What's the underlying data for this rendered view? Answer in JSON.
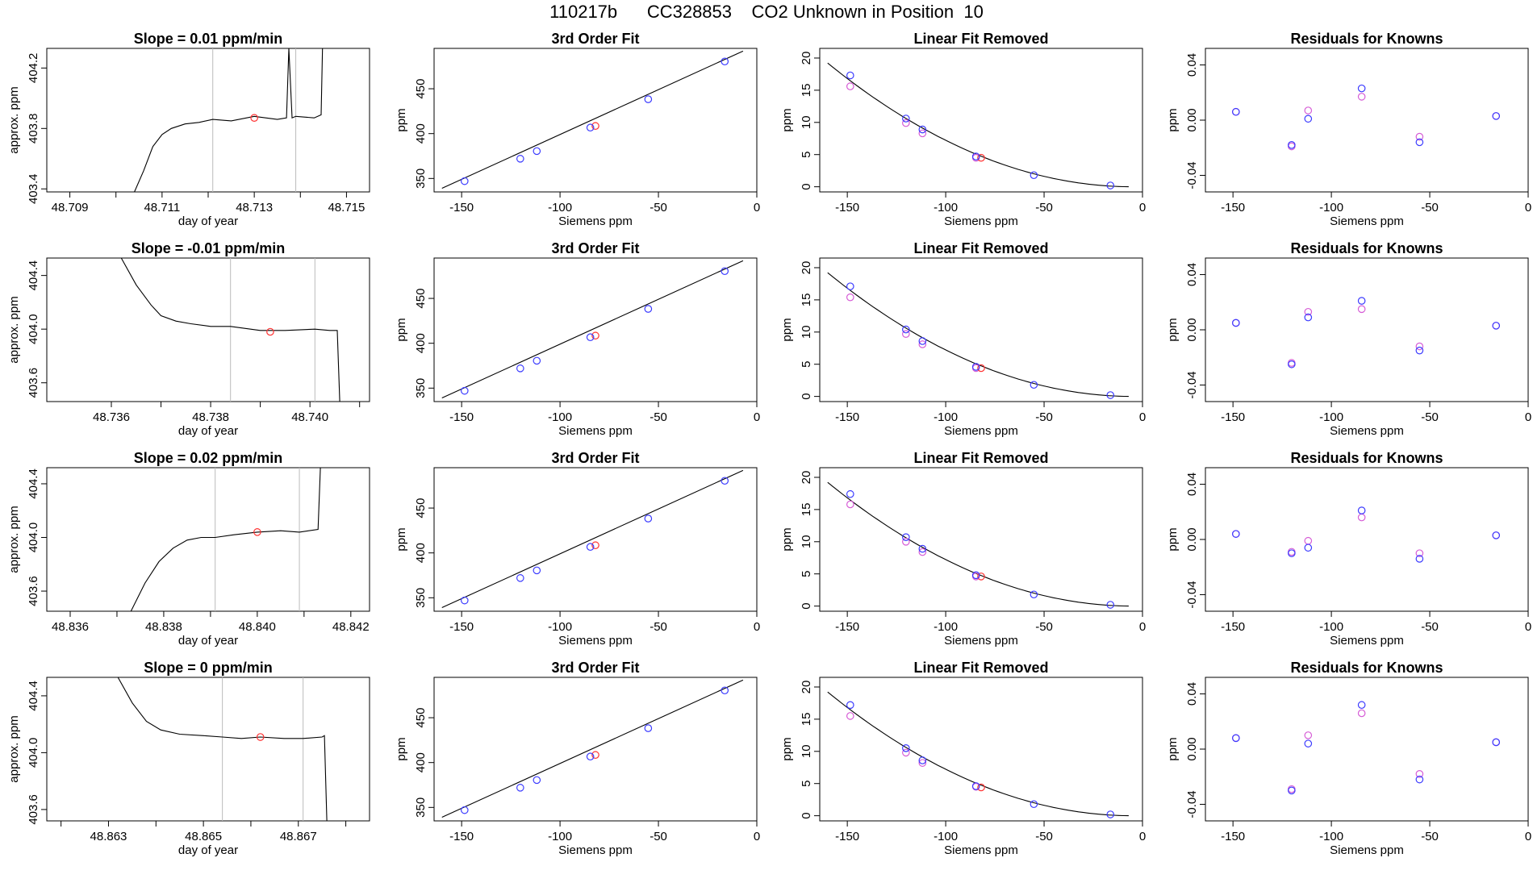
{
  "figure_title": "110217b      CC328853    CO2 Unknown in Position  10",
  "colors": {
    "known": "#3b3bff",
    "fit": "#d65cd6",
    "unknown": "#ff3030",
    "line": "#000000",
    "guide": "#bbbbbb"
  },
  "chart_data": [
    {
      "type": "line",
      "row": 1,
      "col": 1,
      "title": "Slope =  0.01  ppm/min",
      "xlabel": "day of year",
      "ylabel": "approx. ppm",
      "xlim": [
        48.7085,
        48.7155
      ],
      "ylim": [
        403.38,
        404.33
      ],
      "xticks": [
        48.709,
        48.711,
        48.713,
        48.715
      ],
      "xtick_labels": [
        "48.709",
        "48.711",
        "48.713",
        "48.715"
      ],
      "xminor": [
        48.71,
        48.712,
        48.714
      ],
      "yticks": [
        403.4,
        403.8,
        404.2
      ],
      "ytick_labels": [
        "403.4",
        "403.8",
        "404.2"
      ],
      "guides": [
        48.7121,
        48.7139
      ],
      "x": [
        48.7104,
        48.7106,
        48.7108,
        48.711,
        48.7112,
        48.7115,
        48.7118,
        48.7121,
        48.7125,
        48.713,
        48.7135,
        48.7137,
        48.71375,
        48.71382,
        48.7139,
        48.7143,
        48.71445,
        48.71448
      ],
      "y": [
        403.38,
        403.52,
        403.68,
        403.76,
        403.8,
        403.83,
        403.84,
        403.86,
        403.85,
        403.88,
        403.86,
        403.87,
        404.33,
        403.87,
        403.88,
        403.87,
        403.89,
        404.33
      ],
      "marker": {
        "x": 48.713,
        "y": 403.87
      }
    },
    {
      "type": "scatter",
      "row": 1,
      "col": 2,
      "title": "3rd Order Fit",
      "xlabel": "Siemens ppm",
      "ylabel": "ppm",
      "xlim": [
        -164,
        0
      ],
      "ylim": [
        335,
        495
      ],
      "xticks": [
        -150,
        -100,
        -50,
        0
      ],
      "xtick_labels": [
        "-150",
        "-100",
        "-50",
        "0"
      ],
      "yticks": [
        350,
        400,
        450
      ],
      "ytick_labels": [
        "350",
        "400",
        "450"
      ],
      "curve": {
        "x": [
          -160,
          -7
        ],
        "y": [
          339,
          492
        ]
      },
      "knowns": {
        "x": [
          -148.5,
          -120.2,
          -111.8,
          -84.6,
          -55.2,
          -16.3
        ],
        "y": [
          347.0,
          372.0,
          380.5,
          406.7,
          438.3,
          480.4
        ]
      },
      "unknown": {
        "x": [
          -82.0
        ],
        "y": [
          408.5
        ]
      }
    },
    {
      "type": "scatter",
      "row": 1,
      "col": 3,
      "title": "Linear Fit Removed",
      "xlabel": "Siemens ppm",
      "ylabel": "ppm",
      "xlim": [
        -164,
        0
      ],
      "ylim": [
        -0.8,
        21.5
      ],
      "xticks": [
        -150,
        -100,
        -50,
        0
      ],
      "xtick_labels": [
        "-150",
        "-100",
        "-50",
        "0"
      ],
      "yticks": [
        0,
        5,
        10,
        15,
        20
      ],
      "ytick_labels": [
        "0",
        "5",
        "10",
        "15",
        "20"
      ],
      "curve_fn": {
        "x0": -5,
        "k": 0.0008
      },
      "knowns": {
        "x": [
          -148.5,
          -120.2,
          -111.8,
          -84.6,
          -55.2,
          -16.3
        ],
        "y": [
          17.3,
          10.6,
          8.9,
          4.7,
          1.8,
          0.2
        ]
      },
      "fit": {
        "x": [
          -148.5,
          -120.2,
          -111.8,
          -84.6
        ],
        "y": [
          15.6,
          9.9,
          8.3,
          4.5
        ]
      },
      "unknown": {
        "x": [
          -82.0
        ],
        "y": [
          4.5
        ]
      }
    },
    {
      "type": "scatter",
      "row": 1,
      "col": 4,
      "title": "Residuals for Knowns",
      "xlabel": "Siemens ppm",
      "ylabel": "ppm",
      "xlim": [
        -164,
        0
      ],
      "ylim": [
        -0.052,
        0.052
      ],
      "xticks": [
        -150,
        -100,
        -50,
        0
      ],
      "xtick_labels": [
        "-150",
        "-100",
        "-50",
        "0"
      ],
      "yticks": [
        -0.04,
        0.0,
        0.04
      ],
      "ytick_labels": [
        "-0.04",
        "0.00",
        "0.04"
      ],
      "knowns": {
        "x": [
          -148.5,
          -120.2,
          -111.8,
          -84.6,
          -55.2,
          -16.3
        ],
        "y": [
          0.006,
          -0.018,
          0.001,
          0.023,
          -0.016,
          0.003
        ]
      },
      "fit": {
        "x": [
          -148.5,
          -120.2,
          -111.8,
          -84.6,
          -55.2,
          -16.3
        ],
        "y": [
          0.006,
          -0.019,
          0.007,
          0.017,
          -0.012,
          0.003
        ]
      }
    },
    {
      "type": "line",
      "row": 2,
      "col": 1,
      "title": "Slope =  -0.01  ppm/min",
      "xlabel": "day of year",
      "ylabel": "approx. ppm",
      "xlim": [
        48.7347,
        48.7412
      ],
      "ylim": [
        403.46,
        404.53
      ],
      "xticks": [
        48.736,
        48.738,
        48.74
      ],
      "xtick_labels": [
        "48.736",
        "48.738",
        "48.740"
      ],
      "xminor": [
        48.737,
        48.739,
        48.741
      ],
      "yticks": [
        403.6,
        404.0,
        404.4
      ],
      "ytick_labels": [
        "403.6",
        "404.0",
        "404.4"
      ],
      "guides": [
        48.7384,
        48.7401
      ],
      "x": [
        48.7362,
        48.7365,
        48.7368,
        48.737,
        48.7373,
        48.7376,
        48.738,
        48.7384,
        48.739,
        48.7395,
        48.7401,
        48.7404,
        48.74055,
        48.7406
      ],
      "y": [
        404.53,
        404.33,
        404.18,
        404.1,
        404.06,
        404.04,
        404.02,
        404.02,
        403.99,
        403.99,
        404.0,
        403.99,
        403.99,
        403.46
      ],
      "marker": {
        "x": 48.7392,
        "y": 403.98
      }
    },
    {
      "type": "scatter",
      "row": 2,
      "col": 2,
      "title": "3rd Order Fit",
      "xlabel": "Siemens ppm",
      "ylabel": "ppm",
      "xlim": [
        -164,
        0
      ],
      "ylim": [
        335,
        495
      ],
      "xticks": [
        -150,
        -100,
        -50,
        0
      ],
      "xtick_labels": [
        "-150",
        "-100",
        "-50",
        "0"
      ],
      "yticks": [
        350,
        400,
        450
      ],
      "ytick_labels": [
        "350",
        "400",
        "450"
      ],
      "curve": {
        "x": [
          -160,
          -7
        ],
        "y": [
          339,
          492
        ]
      },
      "knowns": {
        "x": [
          -148.5,
          -120.2,
          -111.8,
          -84.6,
          -55.2,
          -16.3
        ],
        "y": [
          347.0,
          372.0,
          380.5,
          406.7,
          438.3,
          480.4
        ]
      },
      "unknown": {
        "x": [
          -82.0
        ],
        "y": [
          408.5
        ]
      }
    },
    {
      "type": "scatter",
      "row": 2,
      "col": 3,
      "title": "Linear Fit Removed",
      "xlabel": "Siemens ppm",
      "ylabel": "ppm",
      "xlim": [
        -164,
        0
      ],
      "ylim": [
        -0.8,
        21.5
      ],
      "xticks": [
        -150,
        -100,
        -50,
        0
      ],
      "xtick_labels": [
        "-150",
        "-100",
        "-50",
        "0"
      ],
      "yticks": [
        0,
        5,
        10,
        15,
        20
      ],
      "ytick_labels": [
        "0",
        "5",
        "10",
        "15",
        "20"
      ],
      "curve_fn": {
        "x0": -5,
        "k": 0.0008
      },
      "knowns": {
        "x": [
          -148.5,
          -120.2,
          -111.8,
          -84.6,
          -55.2,
          -16.3
        ],
        "y": [
          17.1,
          10.4,
          8.6,
          4.6,
          1.8,
          0.2
        ]
      },
      "fit": {
        "x": [
          -148.5,
          -120.2,
          -111.8,
          -84.6
        ],
        "y": [
          15.4,
          9.7,
          8.1,
          4.4
        ]
      },
      "unknown": {
        "x": [
          -82.0
        ],
        "y": [
          4.4
        ]
      }
    },
    {
      "type": "scatter",
      "row": 2,
      "col": 4,
      "title": "Residuals for Knowns",
      "xlabel": "Siemens ppm",
      "ylabel": "ppm",
      "xlim": [
        -164,
        0
      ],
      "ylim": [
        -0.052,
        0.052
      ],
      "xticks": [
        -150,
        -100,
        -50,
        0
      ],
      "xtick_labels": [
        "-150",
        "-100",
        "-50",
        "0"
      ],
      "yticks": [
        -0.04,
        0.0,
        0.04
      ],
      "ytick_labels": [
        "-0.04",
        "0.00",
        "0.04"
      ],
      "knowns": {
        "x": [
          -148.5,
          -120.2,
          -111.8,
          -84.6,
          -55.2,
          -16.3
        ],
        "y": [
          0.005,
          -0.025,
          0.009,
          0.021,
          -0.015,
          0.003
        ]
      },
      "fit": {
        "x": [
          -148.5,
          -120.2,
          -111.8,
          -84.6,
          -55.2,
          -16.3
        ],
        "y": [
          0.005,
          -0.024,
          0.013,
          0.015,
          -0.012,
          0.003
        ]
      }
    },
    {
      "type": "line",
      "row": 3,
      "col": 1,
      "title": "Slope =  0.02  ppm/min",
      "xlabel": "day of year",
      "ylabel": "approx. ppm",
      "xlim": [
        48.8355,
        48.8424
      ],
      "ylim": [
        403.45,
        404.52
      ],
      "xticks": [
        48.836,
        48.838,
        48.84,
        48.842
      ],
      "xtick_labels": [
        "48.836",
        "48.838",
        "48.840",
        "48.842"
      ],
      "xminor": [
        48.837,
        48.839,
        48.841
      ],
      "yticks": [
        403.6,
        404.0,
        404.4
      ],
      "ytick_labels": [
        "403.6",
        "404.0",
        "404.4"
      ],
      "guides": [
        48.8391,
        48.8409
      ],
      "x": [
        48.8373,
        48.8376,
        48.8379,
        48.8382,
        48.8385,
        48.8388,
        48.8391,
        48.8395,
        48.84,
        48.8405,
        48.8409,
        48.8413,
        48.84135
      ],
      "y": [
        403.45,
        403.66,
        403.82,
        403.92,
        403.98,
        404.0,
        404.0,
        404.02,
        404.04,
        404.05,
        404.04,
        404.06,
        404.52
      ],
      "marker": {
        "x": 48.84,
        "y": 404.04
      }
    },
    {
      "type": "scatter",
      "row": 3,
      "col": 2,
      "title": "3rd Order Fit",
      "xlabel": "Siemens ppm",
      "ylabel": "ppm",
      "xlim": [
        -164,
        0
      ],
      "ylim": [
        335,
        495
      ],
      "xticks": [
        -150,
        -100,
        -50,
        0
      ],
      "xtick_labels": [
        "-150",
        "-100",
        "-50",
        "0"
      ],
      "yticks": [
        350,
        400,
        450
      ],
      "ytick_labels": [
        "350",
        "400",
        "450"
      ],
      "curve": {
        "x": [
          -160,
          -7
        ],
        "y": [
          339,
          492
        ]
      },
      "knowns": {
        "x": [
          -148.5,
          -120.2,
          -111.8,
          -84.6,
          -55.2,
          -16.3
        ],
        "y": [
          347.0,
          372.0,
          380.5,
          406.7,
          438.3,
          480.4
        ]
      },
      "unknown": {
        "x": [
          -82.0
        ],
        "y": [
          408.5
        ]
      }
    },
    {
      "type": "scatter",
      "row": 3,
      "col": 3,
      "title": "Linear Fit Removed",
      "xlabel": "Siemens ppm",
      "ylabel": "ppm",
      "xlim": [
        -164,
        0
      ],
      "ylim": [
        -0.8,
        21.5
      ],
      "xticks": [
        -150,
        -100,
        -50,
        0
      ],
      "xtick_labels": [
        "-150",
        "-100",
        "-50",
        "0"
      ],
      "yticks": [
        0,
        5,
        10,
        15,
        20
      ],
      "ytick_labels": [
        "0",
        "5",
        "10",
        "15",
        "20"
      ],
      "curve_fn": {
        "x0": -5,
        "k": 0.0008
      },
      "knowns": {
        "x": [
          -148.5,
          -120.2,
          -111.8,
          -84.6,
          -55.2,
          -16.3
        ],
        "y": [
          17.4,
          10.7,
          8.9,
          4.8,
          1.8,
          0.2
        ]
      },
      "fit": {
        "x": [
          -148.5,
          -120.2,
          -111.8,
          -84.6
        ],
        "y": [
          15.8,
          10.0,
          8.4,
          4.6
        ]
      },
      "unknown": {
        "x": [
          -82.0
        ],
        "y": [
          4.6
        ]
      }
    },
    {
      "type": "scatter",
      "row": 3,
      "col": 4,
      "title": "Residuals for Knowns",
      "xlabel": "Siemens ppm",
      "ylabel": "ppm",
      "xlim": [
        -164,
        0
      ],
      "ylim": [
        -0.052,
        0.052
      ],
      "xticks": [
        -150,
        -100,
        -50,
        0
      ],
      "xtick_labels": [
        "-150",
        "-100",
        "-50",
        "0"
      ],
      "yticks": [
        -0.04,
        0.0,
        0.04
      ],
      "ytick_labels": [
        "-0.04",
        "0.00",
        "0.04"
      ],
      "knowns": {
        "x": [
          -148.5,
          -120.2,
          -111.8,
          -84.6,
          -55.2,
          -16.3
        ],
        "y": [
          0.004,
          -0.01,
          -0.006,
          0.021,
          -0.014,
          0.003
        ]
      },
      "fit": {
        "x": [
          -148.5,
          -120.2,
          -111.8,
          -84.6,
          -55.2,
          -16.3
        ],
        "y": [
          0.004,
          -0.009,
          -0.001,
          0.016,
          -0.01,
          0.003
        ]
      }
    },
    {
      "type": "line",
      "row": 4,
      "col": 1,
      "title": "Slope =  0  ppm/min",
      "xlabel": "day of year",
      "ylabel": "approx. ppm",
      "xlim": [
        48.8617,
        48.8685
      ],
      "ylim": [
        403.52,
        404.53
      ],
      "xticks": [
        48.863,
        48.865,
        48.867
      ],
      "xtick_labels": [
        "48.863",
        "48.865",
        "48.867"
      ],
      "xminor": [
        48.862,
        48.864,
        48.866,
        48.868
      ],
      "yticks": [
        403.6,
        404.0,
        404.4
      ],
      "ytick_labels": [
        "403.6",
        "404.0",
        "404.4"
      ],
      "guides": [
        48.8654,
        48.8671
      ],
      "x": [
        48.8632,
        48.8635,
        48.8638,
        48.8641,
        48.8645,
        48.865,
        48.8654,
        48.8658,
        48.8662,
        48.8667,
        48.8671,
        48.8675,
        48.86755,
        48.8676
      ],
      "y": [
        404.53,
        404.35,
        404.22,
        404.16,
        404.13,
        404.12,
        404.11,
        404.1,
        404.11,
        404.1,
        404.1,
        404.11,
        404.12,
        403.52
      ],
      "marker": {
        "x": 48.8662,
        "y": 404.11
      }
    },
    {
      "type": "scatter",
      "row": 4,
      "col": 2,
      "title": "3rd Order Fit",
      "xlabel": "Siemens ppm",
      "ylabel": "ppm",
      "xlim": [
        -164,
        0
      ],
      "ylim": [
        335,
        495
      ],
      "xticks": [
        -150,
        -100,
        -50,
        0
      ],
      "xtick_labels": [
        "-150",
        "-100",
        "-50",
        "0"
      ],
      "yticks": [
        350,
        400,
        450
      ],
      "ytick_labels": [
        "350",
        "400",
        "450"
      ],
      "curve": {
        "x": [
          -160,
          -7
        ],
        "y": [
          339,
          492
        ]
      },
      "knowns": {
        "x": [
          -148.5,
          -120.2,
          -111.8,
          -84.6,
          -55.2,
          -16.3
        ],
        "y": [
          347.0,
          372.0,
          380.5,
          406.7,
          438.3,
          480.4
        ]
      },
      "unknown": {
        "x": [
          -82.0
        ],
        "y": [
          408.5
        ]
      }
    },
    {
      "type": "scatter",
      "row": 4,
      "col": 3,
      "title": "Linear Fit Removed",
      "xlabel": "Siemens ppm",
      "ylabel": "ppm",
      "xlim": [
        -164,
        0
      ],
      "ylim": [
        -0.8,
        21.5
      ],
      "xticks": [
        -150,
        -100,
        -50,
        0
      ],
      "xtick_labels": [
        "-150",
        "-100",
        "-50",
        "0"
      ],
      "yticks": [
        0,
        5,
        10,
        15,
        20
      ],
      "ytick_labels": [
        "0",
        "5",
        "10",
        "15",
        "20"
      ],
      "curve_fn": {
        "x0": -5,
        "k": 0.0008
      },
      "knowns": {
        "x": [
          -148.5,
          -120.2,
          -111.8,
          -84.6,
          -55.2,
          -16.3
        ],
        "y": [
          17.2,
          10.5,
          8.6,
          4.6,
          1.8,
          0.2
        ]
      },
      "fit": {
        "x": [
          -148.5,
          -120.2,
          -111.8,
          -84.6
        ],
        "y": [
          15.5,
          9.8,
          8.2,
          4.5
        ]
      },
      "unknown": {
        "x": [
          -82.0
        ],
        "y": [
          4.4
        ]
      }
    },
    {
      "type": "scatter",
      "row": 4,
      "col": 4,
      "title": "Residuals for Knowns",
      "xlabel": "Siemens ppm",
      "ylabel": "ppm",
      "xlim": [
        -164,
        0
      ],
      "ylim": [
        -0.052,
        0.052
      ],
      "xticks": [
        -150,
        -100,
        -50,
        0
      ],
      "xtick_labels": [
        "-150",
        "-100",
        "-50",
        "0"
      ],
      "yticks": [
        -0.04,
        0.0,
        0.04
      ],
      "ytick_labels": [
        "-0.04",
        "0.00",
        "0.04"
      ],
      "knowns": {
        "x": [
          -148.5,
          -120.2,
          -111.8,
          -84.6,
          -55.2,
          -16.3
        ],
        "y": [
          0.008,
          -0.03,
          0.004,
          0.032,
          -0.022,
          0.005
        ]
      },
      "fit": {
        "x": [
          -148.5,
          -120.2,
          -111.8,
          -84.6,
          -55.2,
          -16.3
        ],
        "y": [
          0.008,
          -0.029,
          0.01,
          0.026,
          -0.018,
          0.005
        ]
      }
    }
  ]
}
